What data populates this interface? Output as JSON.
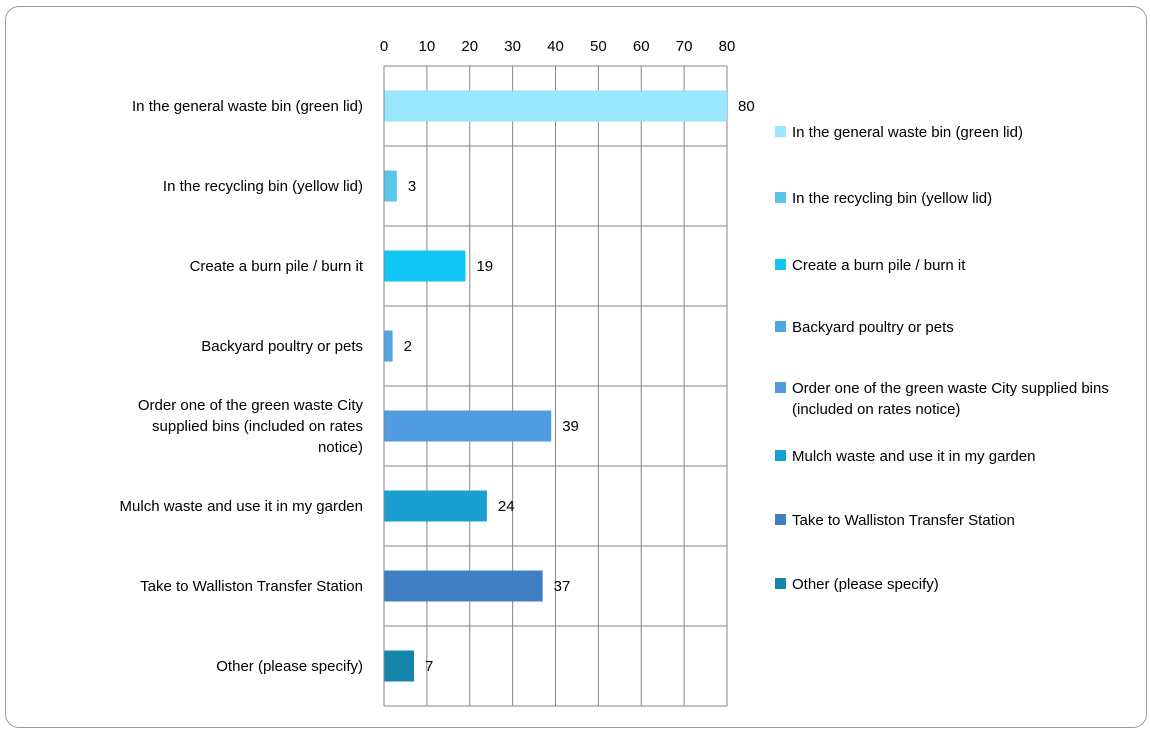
{
  "chart_data": {
    "type": "bar",
    "orientation": "horizontal",
    "title": "",
    "xlabel": "",
    "ylabel": "",
    "xlim": [
      0,
      80
    ],
    "xticks": [
      0,
      10,
      20,
      30,
      40,
      50,
      60,
      70,
      80
    ],
    "x_axis_position": "top",
    "grid": true,
    "legend_position": "right",
    "categories": [
      "In the general waste bin (green lid)",
      "In the recycling bin (yellow lid)",
      "Create a burn pile / burn it",
      "Backyard poultry or pets",
      "Order one of the green waste City supplied bins (included on rates notice)",
      "Mulch waste and use it in my garden",
      "Take to Walliston Transfer Station",
      "Other (please specify)"
    ],
    "values": [
      80,
      3,
      19,
      2,
      39,
      24,
      37,
      7
    ],
    "colors": [
      "#99e6ff",
      "#5cc5eb",
      "#11c6f5",
      "#51a6e0",
      "#519be0",
      "#1a9fd1",
      "#3f80c4",
      "#1585ab"
    ]
  }
}
